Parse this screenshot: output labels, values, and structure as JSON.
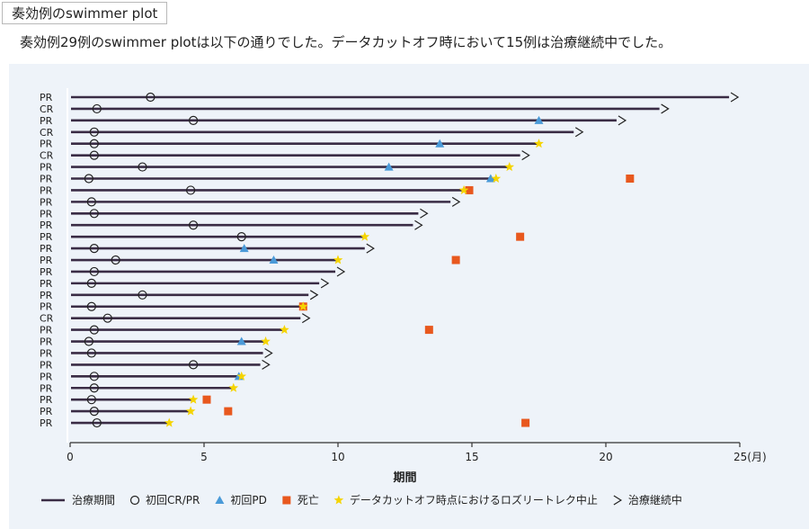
{
  "header": {
    "title": "奏効例のswimmer plot",
    "subtitle": "奏効例29例のswimmer plotは以下の通りでした。データカットオフ時において15例は治療継続中でした。"
  },
  "colors": {
    "bar": "#3a2c45",
    "triangle": "#4a9ad8",
    "square": "#e8581e",
    "star": "#f5d400",
    "axis": "#333333",
    "panel": "#eef3f9"
  },
  "chart_data": {
    "type": "swimmer",
    "xlabel": "期間",
    "xunit": "(月)",
    "xlim": [
      0,
      25
    ],
    "xticks": [
      0,
      5,
      10,
      15,
      20,
      25
    ],
    "tick_labels": [
      "0",
      "5",
      "10",
      "15",
      "20",
      "25"
    ],
    "legend": {
      "position": "bottom",
      "items": [
        {
          "key": "bar",
          "label": "治療期間"
        },
        {
          "key": "circle",
          "label": "初回CR/PR"
        },
        {
          "key": "triangle",
          "label": "初回PD"
        },
        {
          "key": "square",
          "label": "死亡"
        },
        {
          "key": "star",
          "label": "データカットオフ時点におけるロズリートレク中止"
        },
        {
          "key": "arrow",
          "label": "治療継続中"
        }
      ]
    },
    "patients": [
      {
        "response": "PR",
        "duration": 24.6,
        "ongoing": true,
        "first_response": 3.0,
        "pd": null,
        "death": null,
        "discontinued": null
      },
      {
        "response": "CR",
        "duration": 22.0,
        "ongoing": true,
        "first_response": 1.0,
        "pd": null,
        "death": null,
        "discontinued": null
      },
      {
        "response": "PR",
        "duration": 20.4,
        "ongoing": true,
        "first_response": 4.6,
        "pd": 17.5,
        "death": null,
        "discontinued": null
      },
      {
        "response": "CR",
        "duration": 18.8,
        "ongoing": true,
        "first_response": 0.9,
        "pd": null,
        "death": null,
        "discontinued": null
      },
      {
        "response": "PR",
        "duration": 17.5,
        "ongoing": false,
        "first_response": 0.9,
        "pd": 13.8,
        "death": null,
        "discontinued": 17.5
      },
      {
        "response": "CR",
        "duration": 16.8,
        "ongoing": true,
        "first_response": 0.9,
        "pd": null,
        "death": null,
        "discontinued": null
      },
      {
        "response": "PR",
        "duration": 16.4,
        "ongoing": false,
        "first_response": 2.7,
        "pd": 11.9,
        "death": null,
        "discontinued": 16.4
      },
      {
        "response": "PR",
        "duration": 15.9,
        "ongoing": false,
        "first_response": 0.7,
        "pd": 15.7,
        "death": 20.9,
        "discontinued": 15.9
      },
      {
        "response": "PR",
        "duration": 14.7,
        "ongoing": false,
        "first_response": 4.5,
        "pd": null,
        "death": 14.9,
        "discontinued": 14.7
      },
      {
        "response": "PR",
        "duration": 14.2,
        "ongoing": true,
        "first_response": 0.8,
        "pd": null,
        "death": null,
        "discontinued": null
      },
      {
        "response": "PR",
        "duration": 13.0,
        "ongoing": true,
        "first_response": 0.9,
        "pd": null,
        "death": null,
        "discontinued": null
      },
      {
        "response": "PR",
        "duration": 12.8,
        "ongoing": true,
        "first_response": 4.6,
        "pd": null,
        "death": null,
        "discontinued": null
      },
      {
        "response": "PR",
        "duration": 11.0,
        "ongoing": false,
        "first_response": 6.4,
        "pd": null,
        "death": 16.8,
        "discontinued": 11.0
      },
      {
        "response": "PR",
        "duration": 11.0,
        "ongoing": true,
        "first_response": 0.9,
        "pd": 6.5,
        "death": null,
        "discontinued": null
      },
      {
        "response": "PR",
        "duration": 10.0,
        "ongoing": false,
        "first_response": 1.7,
        "pd": 7.6,
        "death": 14.4,
        "discontinued": 10.0
      },
      {
        "response": "PR",
        "duration": 9.9,
        "ongoing": true,
        "first_response": 0.9,
        "pd": null,
        "death": null,
        "discontinued": null
      },
      {
        "response": "PR",
        "duration": 9.3,
        "ongoing": true,
        "first_response": 0.8,
        "pd": null,
        "death": null,
        "discontinued": null
      },
      {
        "response": "PR",
        "duration": 8.9,
        "ongoing": true,
        "first_response": 2.7,
        "pd": null,
        "death": null,
        "discontinued": null
      },
      {
        "response": "PR",
        "duration": 8.7,
        "ongoing": false,
        "first_response": 0.8,
        "pd": null,
        "death": 8.7,
        "discontinued": 8.7
      },
      {
        "response": "CR",
        "duration": 8.6,
        "ongoing": true,
        "first_response": 1.4,
        "pd": null,
        "death": null,
        "discontinued": null
      },
      {
        "response": "PR",
        "duration": 8.0,
        "ongoing": false,
        "first_response": 0.9,
        "pd": null,
        "death": 13.4,
        "discontinued": 8.0
      },
      {
        "response": "PR",
        "duration": 7.3,
        "ongoing": false,
        "first_response": 0.7,
        "pd": 6.4,
        "death": null,
        "discontinued": 7.3
      },
      {
        "response": "PR",
        "duration": 7.2,
        "ongoing": true,
        "first_response": 0.8,
        "pd": null,
        "death": null,
        "discontinued": null
      },
      {
        "response": "PR",
        "duration": 7.1,
        "ongoing": true,
        "first_response": 4.6,
        "pd": null,
        "death": null,
        "discontinued": null
      },
      {
        "response": "PR",
        "duration": 6.4,
        "ongoing": false,
        "first_response": 0.9,
        "pd": 6.3,
        "death": null,
        "discontinued": 6.4
      },
      {
        "response": "PR",
        "duration": 6.1,
        "ongoing": false,
        "first_response": 0.9,
        "pd": null,
        "death": null,
        "discontinued": 6.1
      },
      {
        "response": "PR",
        "duration": 4.6,
        "ongoing": false,
        "first_response": 0.8,
        "pd": null,
        "death": 5.1,
        "discontinued": 4.6
      },
      {
        "response": "PR",
        "duration": 4.5,
        "ongoing": false,
        "first_response": 0.9,
        "pd": null,
        "death": 5.9,
        "discontinued": 4.5
      },
      {
        "response": "PR",
        "duration": 3.7,
        "ongoing": false,
        "first_response": 1.0,
        "pd": null,
        "death": 17.0,
        "discontinued": 3.7
      }
    ]
  }
}
